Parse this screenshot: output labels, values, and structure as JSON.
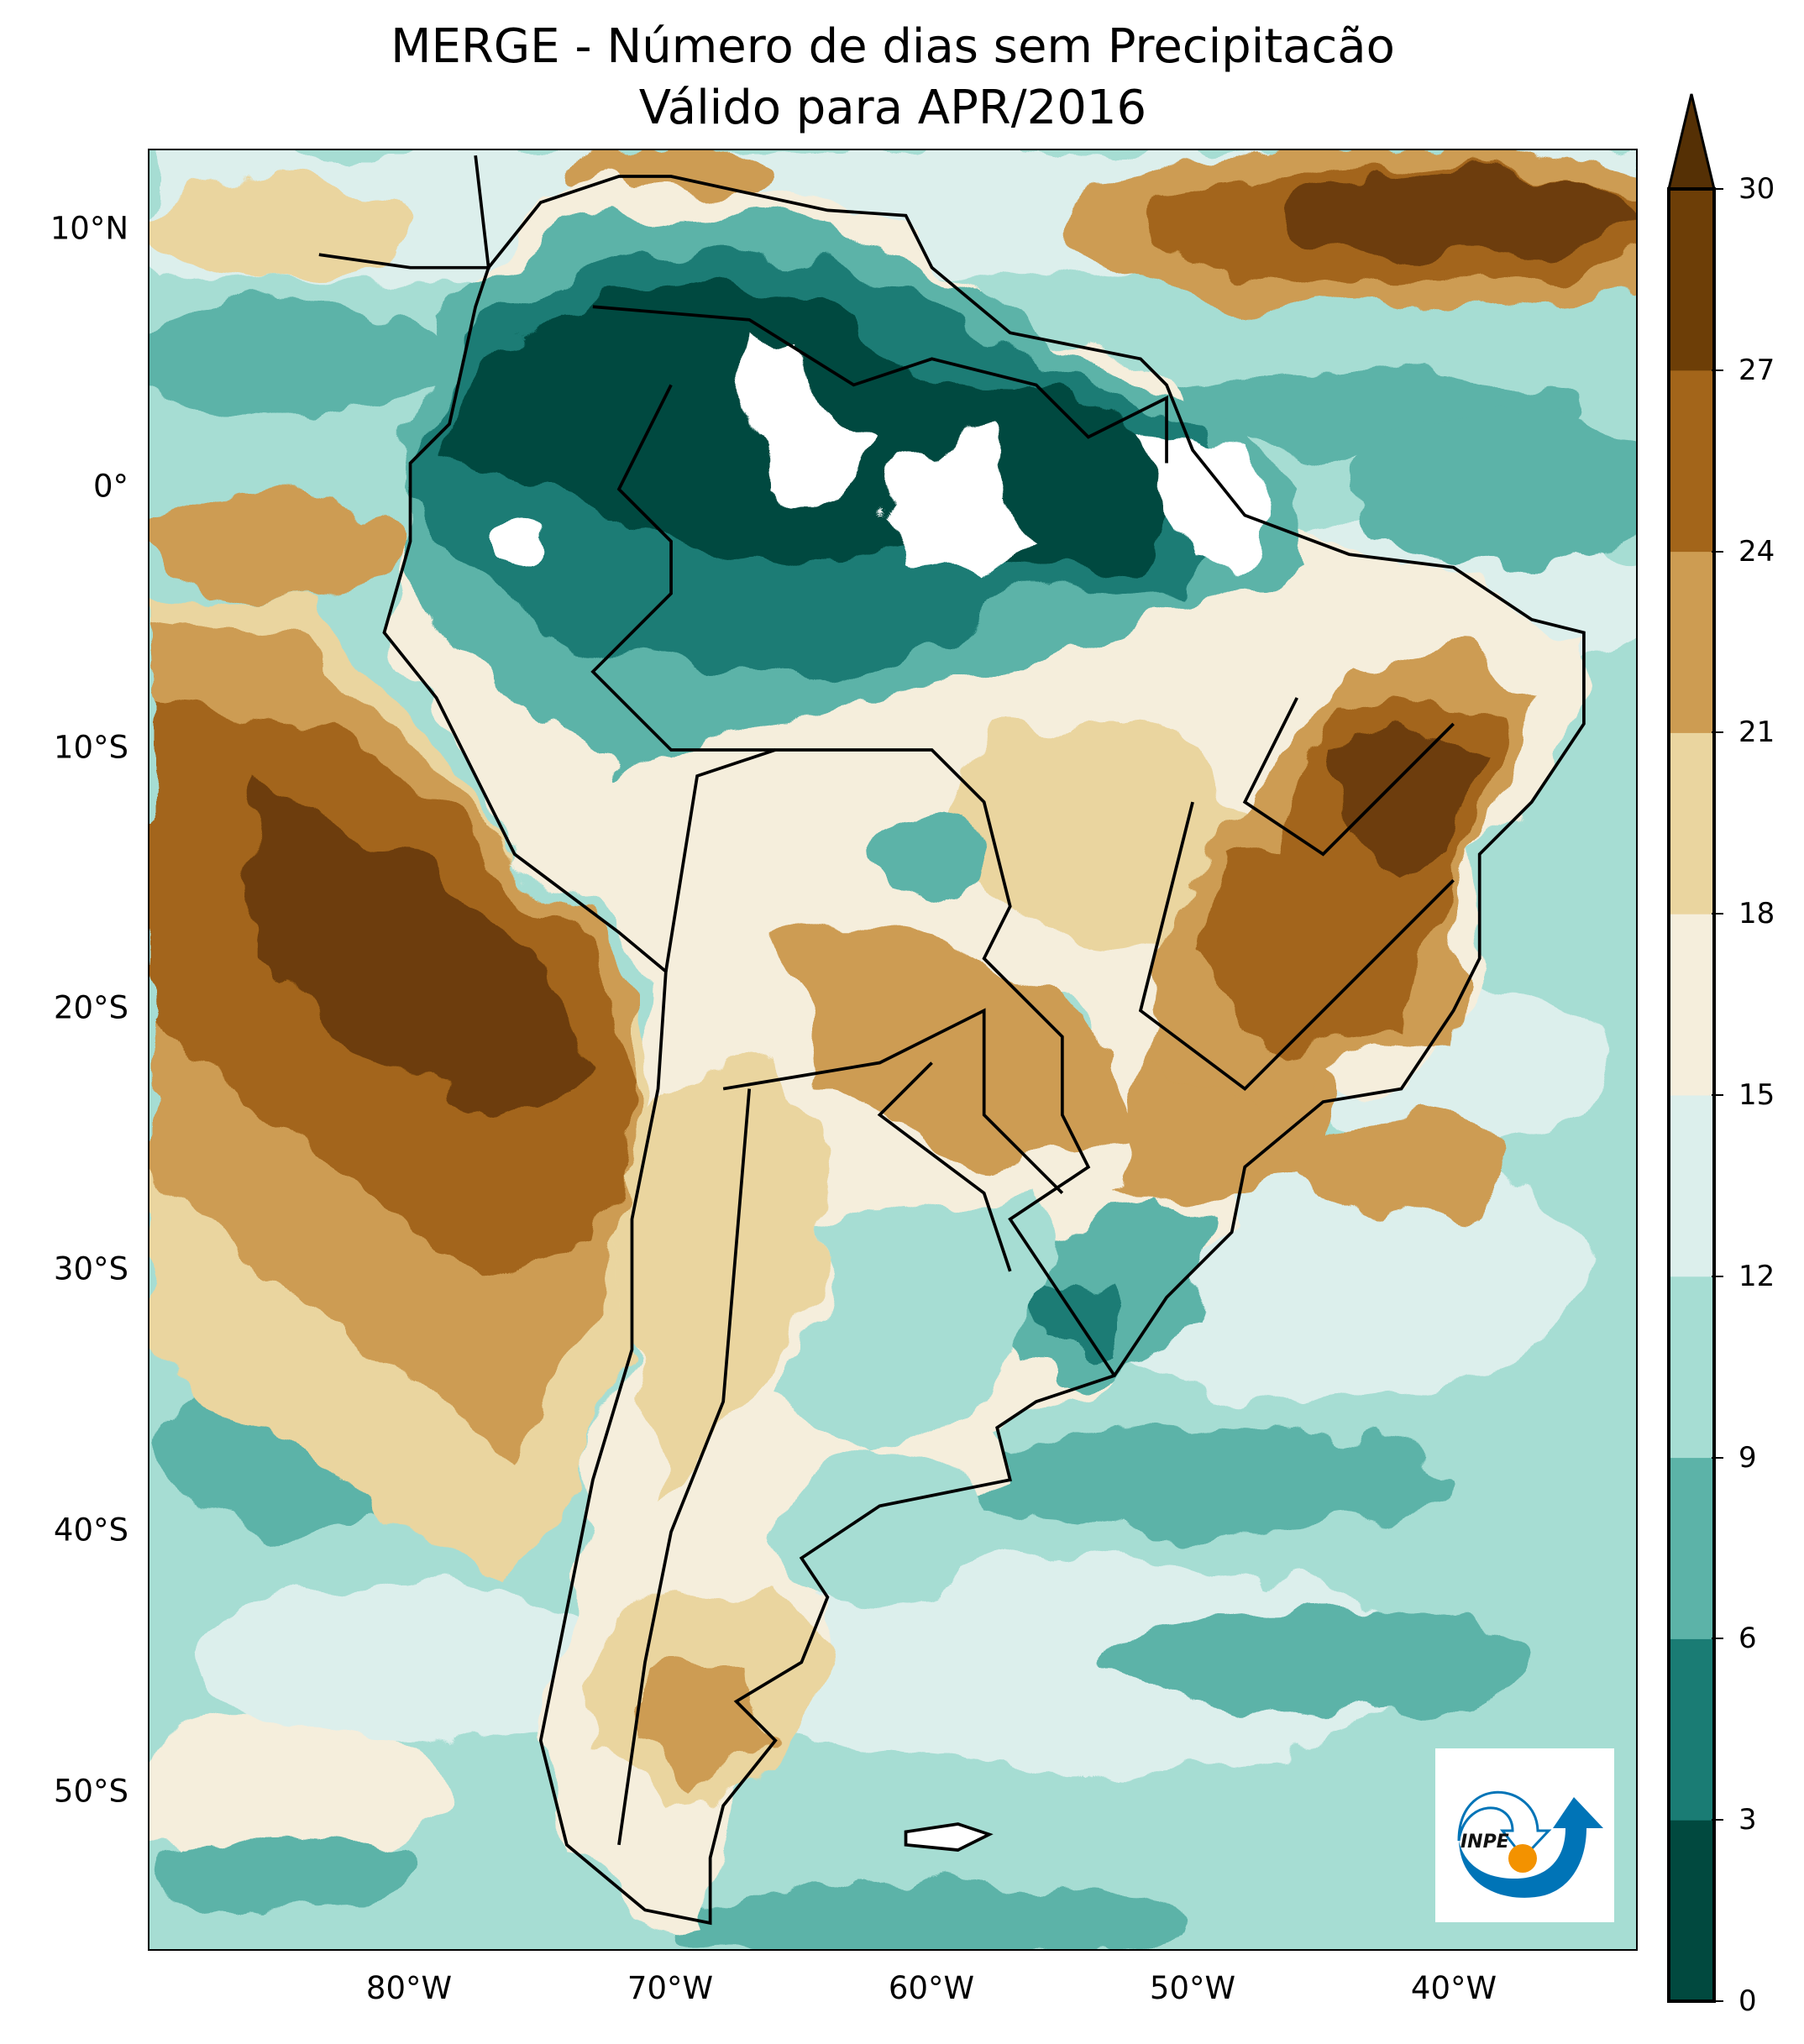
{
  "title": {
    "line1": "MERGE - Número de dias sem Precipitacão",
    "line2": "Válido para APR/2016"
  },
  "map": {
    "extent": {
      "lon_min": -90,
      "lon_max": -33,
      "lat_min": -56,
      "lat_max": 13
    },
    "lat_ticks": [
      {
        "value": 10,
        "label": "10°N"
      },
      {
        "value": 0,
        "label": "0°"
      },
      {
        "value": -10,
        "label": "10°S"
      },
      {
        "value": -20,
        "label": "20°S"
      },
      {
        "value": -30,
        "label": "30°S"
      },
      {
        "value": -40,
        "label": "40°S"
      },
      {
        "value": -50,
        "label": "50°S"
      }
    ],
    "lon_ticks": [
      {
        "value": -80,
        "label": "80°W"
      },
      {
        "value": -70,
        "label": "70°W"
      },
      {
        "value": -60,
        "label": "60°W"
      },
      {
        "value": -50,
        "label": "50°W"
      },
      {
        "value": -40,
        "label": "40°W"
      }
    ]
  },
  "colorbar": {
    "levels": [
      0,
      3,
      6,
      9,
      12,
      15,
      18,
      21,
      24,
      27,
      30
    ],
    "labels": [
      "0",
      "3",
      "6",
      "9",
      "12",
      "15",
      "18",
      "21",
      "24",
      "27",
      "30"
    ],
    "colors": [
      "#01493f",
      "#1a7c74",
      "#5cb3a8",
      "#a6ddd3",
      "#dcefec",
      "#f5eedc",
      "#ead59f",
      "#cd9c52",
      "#a3651a",
      "#6d3e07"
    ],
    "extend_color": "#553005",
    "extend": "max"
  },
  "logo": {
    "text": "INPE",
    "colors": {
      "blue": "#0074b7",
      "orange": "#f39200"
    }
  }
}
